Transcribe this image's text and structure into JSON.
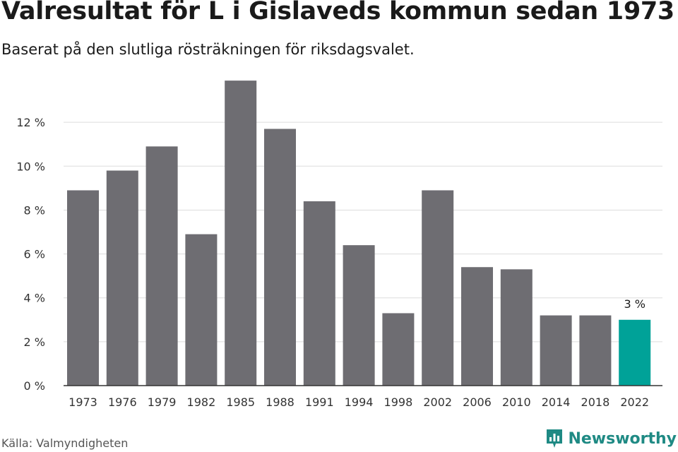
{
  "header": {
    "title": "Valresultat för L i Gislaveds kommun sedan 1973",
    "subtitle": "Baserat på den slutliga rösträkningen för riksdagsvalet."
  },
  "footer": {
    "source": "Källa: Valmyndigheten",
    "brand": "Newsworthy"
  },
  "colors": {
    "bar": "#6e6d72",
    "highlight": "#00a298",
    "grid": "#dddddd",
    "axis": "#333333",
    "brand": "#1f8a84"
  },
  "chart_data": {
    "type": "bar",
    "categories": [
      "1973",
      "1976",
      "1979",
      "1982",
      "1985",
      "1988",
      "1991",
      "1994",
      "1998",
      "2002",
      "2006",
      "2010",
      "2014",
      "2018",
      "2022"
    ],
    "values": [
      8.9,
      9.8,
      10.9,
      6.9,
      13.9,
      11.7,
      8.4,
      6.4,
      3.3,
      8.9,
      5.4,
      5.3,
      3.2,
      3.2,
      3.0
    ],
    "ylim": [
      0,
      14
    ],
    "yticks": [
      0,
      2,
      4,
      6,
      8,
      10,
      12
    ],
    "ytick_labels": [
      "0 %",
      "2 %",
      "4 %",
      "6 %",
      "8 %",
      "10 %",
      "12 %"
    ],
    "grid": true,
    "highlight_index": 14,
    "annotations": [
      {
        "index": 14,
        "text": "3 %"
      }
    ]
  }
}
